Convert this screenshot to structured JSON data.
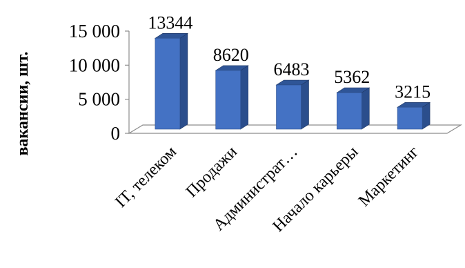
{
  "chart_data": {
    "type": "bar",
    "title": "",
    "ylabel": "вакансии, шт.",
    "xlabel": "",
    "categories": [
      "IT, телеком",
      "Продажи",
      "Администрат…",
      "Начало карьеры",
      "Маркетинг"
    ],
    "values": [
      13344,
      8620,
      6483,
      5362,
      3215
    ],
    "data_labels": [
      "13344",
      "8620",
      "6483",
      "5362",
      "3215"
    ],
    "yticks": [
      0,
      5000,
      10000,
      15000
    ],
    "ytick_labels": [
      "0",
      "5 000",
      "10 000",
      "15 000"
    ],
    "ylim": [
      0,
      15000
    ],
    "grid": false,
    "style": "3d-column",
    "colors": {
      "front": "#4472C4",
      "side": "#2B4E8C",
      "top": "#2F5597"
    }
  }
}
